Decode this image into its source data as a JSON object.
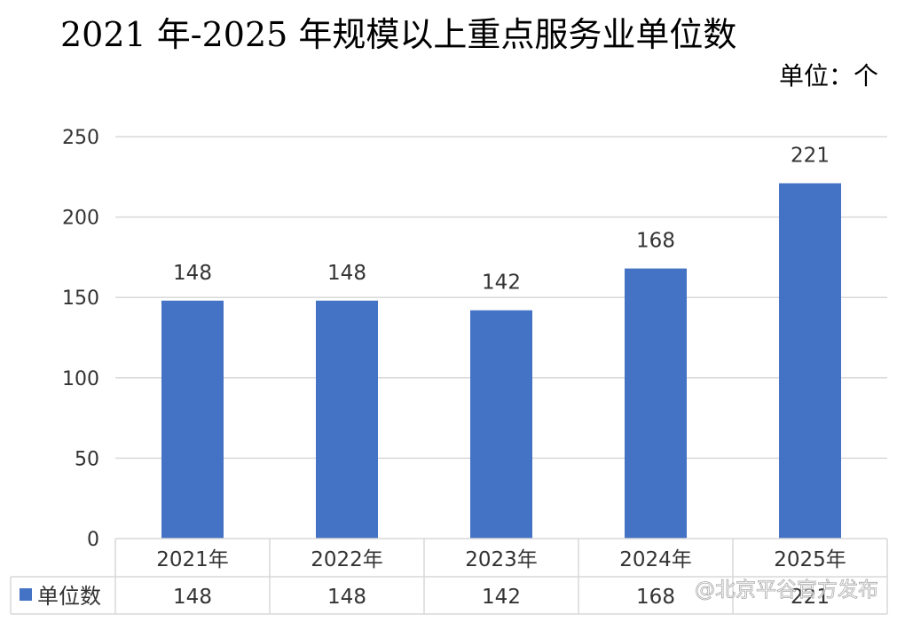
{
  "chart_data": {
    "type": "bar",
    "title": "2021 年-2025 年规模以上重点服务业单位数",
    "unit_label": "单位：个",
    "categories": [
      "2021年",
      "2022年",
      "2023年",
      "2024年",
      "2025年"
    ],
    "series": [
      {
        "name": "单位数",
        "values": [
          148,
          148,
          142,
          168,
          221
        ],
        "color": "#4472C4"
      }
    ],
    "ylim": [
      0,
      250
    ],
    "yticks": [
      0,
      50,
      100,
      150,
      200,
      250
    ],
    "grid": true,
    "data_table": true,
    "data_table_values": [
      "148",
      "148",
      "142",
      "168",
      "221"
    ]
  },
  "watermark": "@北京平谷官方发布"
}
